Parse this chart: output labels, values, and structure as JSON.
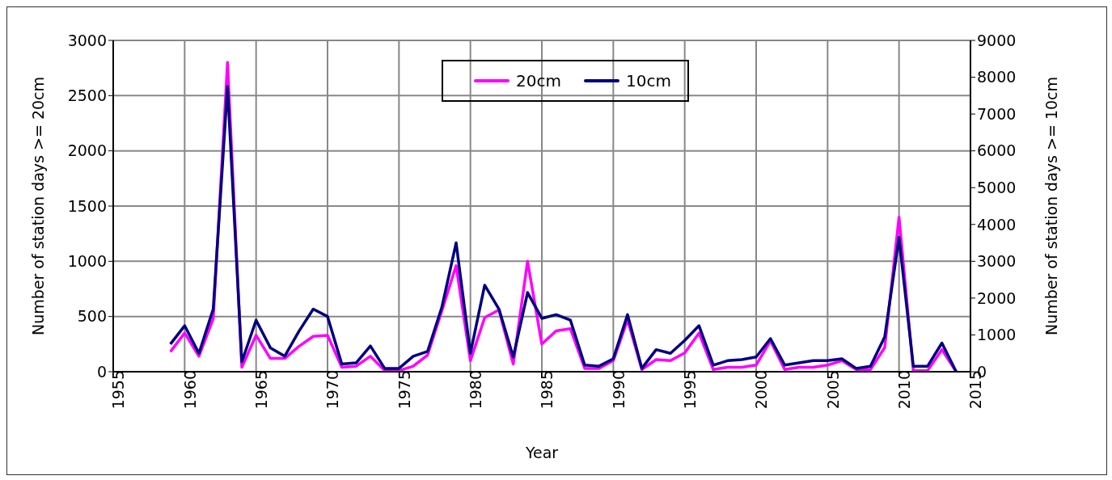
{
  "chart_data": {
    "type": "line",
    "xlabel": "Year",
    "ylabel": "Number of station days >= 20cm",
    "y2label": "Number of station days >= 10cm",
    "x": [
      1959,
      1960,
      1961,
      1962,
      1963,
      1964,
      1965,
      1966,
      1967,
      1968,
      1969,
      1970,
      1971,
      1972,
      1973,
      1974,
      1975,
      1976,
      1977,
      1978,
      1979,
      1980,
      1981,
      1982,
      1983,
      1984,
      1985,
      1986,
      1987,
      1988,
      1989,
      1990,
      1991,
      1992,
      1993,
      1994,
      1995,
      1996,
      1997,
      1998,
      1999,
      2000,
      2001,
      2002,
      2003,
      2004,
      2005,
      2006,
      2007,
      2008,
      2009,
      2010,
      2011,
      2012,
      2013,
      2014
    ],
    "series": [
      {
        "name": "20cm",
        "color": "#ff00ff",
        "values": [
          180,
          350,
          140,
          480,
          2800,
          40,
          330,
          120,
          120,
          230,
          320,
          330,
          40,
          50,
          140,
          10,
          10,
          50,
          150,
          550,
          960,
          100,
          490,
          560,
          70,
          1000,
          250,
          370,
          390,
          30,
          30,
          100,
          470,
          20,
          110,
          100,
          170,
          350,
          20,
          40,
          40,
          60,
          280,
          20,
          40,
          40,
          60,
          100,
          20,
          20,
          220,
          1400,
          10,
          10,
          200,
          0
        ]
      },
      {
        "name": "10cm",
        "color": "#000080",
        "axis": "y2",
        "values": [
          750,
          1250,
          500,
          1700,
          7750,
          270,
          1400,
          650,
          420,
          1100,
          1700,
          1500,
          210,
          240,
          700,
          90,
          90,
          420,
          550,
          1750,
          3500,
          500,
          2350,
          1700,
          400,
          2150,
          1450,
          1550,
          1400,
          180,
          150,
          350,
          1550,
          90,
          600,
          500,
          850,
          1250,
          180,
          300,
          330,
          400,
          900,
          180,
          240,
          300,
          300,
          350,
          90,
          150,
          950,
          3650,
          150,
          150,
          780,
          0
        ]
      }
    ],
    "xlim": [
      1955,
      2015
    ],
    "xticks": [
      1955,
      1960,
      1965,
      1970,
      1975,
      1980,
      1985,
      1990,
      1995,
      2000,
      2005,
      2010,
      2015
    ],
    "ylim": [
      0,
      3000
    ],
    "yticks": [
      0,
      500,
      1000,
      1500,
      2000,
      2500,
      3000
    ],
    "y2lim": [
      0,
      9000
    ],
    "y2ticks": [
      0,
      1000,
      2000,
      3000,
      4000,
      5000,
      6000,
      7000,
      8000,
      9000
    ],
    "grid": true,
    "legend": "top",
    "marker": "none",
    "line_style": "solid"
  }
}
